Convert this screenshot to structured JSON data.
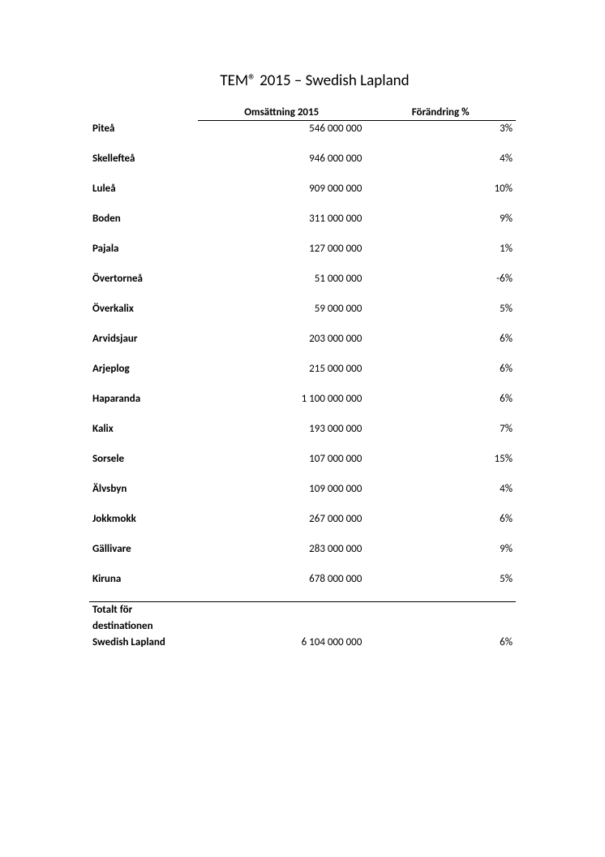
{
  "title": "TEM® 2015 – Swedish Lapland",
  "columns": {
    "label": "",
    "oms": "Omsättning 2015",
    "change": "Förändring %"
  },
  "rows": [
    {
      "label": "Piteå",
      "oms": "546 000 000",
      "change": "3%"
    },
    {
      "label": "Skellefteå",
      "oms": "946 000 000",
      "change": "4%"
    },
    {
      "label": "Luleå",
      "oms": "909 000 000",
      "change": "10%"
    },
    {
      "label": "Boden",
      "oms": "311 000 000",
      "change": "9%"
    },
    {
      "label": "Pajala",
      "oms": "127 000 000",
      "change": "1%"
    },
    {
      "label": "Övertorneå",
      "oms": "51 000 000",
      "change": "-6%"
    },
    {
      "label": "Överkalix",
      "oms": "59 000 000",
      "change": "5%"
    },
    {
      "label": "Arvidsjaur",
      "oms": "203 000 000",
      "change": "6%"
    },
    {
      "label": "Arjeplog",
      "oms": "215 000 000",
      "change": "6%"
    },
    {
      "label": "Haparanda",
      "oms": "1 100 000 000",
      "change": "6%"
    },
    {
      "label": "Kalix",
      "oms": "193 000 000",
      "change": "7%"
    },
    {
      "label": "Sorsele",
      "oms": "107 000 000",
      "change": "15%"
    },
    {
      "label": "Älvsbyn",
      "oms": "109 000 000",
      "change": "4%"
    },
    {
      "label": "Jokkmokk",
      "oms": "267 000 000",
      "change": "6%"
    },
    {
      "label": "Gällivare",
      "oms": "283 000 000",
      "change": "9%"
    },
    {
      "label": "Kiruna",
      "oms": "678 000 000",
      "change": "5%"
    }
  ],
  "total": {
    "label_line1": "Totalt för",
    "label_line2": "destinationen",
    "label_line3": "Swedish Lapland",
    "oms": "6 104 000 000",
    "change": "6%"
  },
  "style": {
    "font_family": "Calibri",
    "title_fontsize_pt": 14,
    "body_fontsize_pt": 10,
    "text_color": "#000000",
    "background_color": "#ffffff",
    "rule_color": "#000000"
  }
}
